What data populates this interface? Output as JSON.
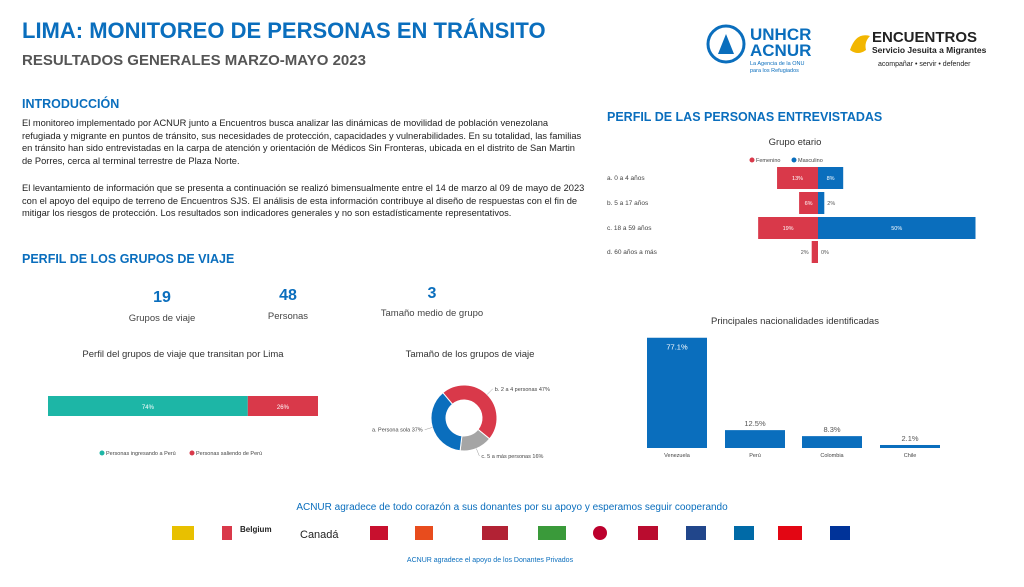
{
  "header": {
    "title": "LIMA: MONITOREO DE PERSONAS EN TRÁNSITO",
    "subtitle": "RESULTADOS GENERALES MARZO-MAYO 2023",
    "logo_unhcr": [
      "UNHCR",
      "ACNUR",
      "La Agencia de la ONU",
      "para los Refugiados"
    ],
    "logo_encuentros": [
      "ENCUENTROS",
      "Servicio Jesuita a Migrantes",
      "acompañar  •  servir  •  defender"
    ]
  },
  "intro": {
    "heading": "INTRODUCCIÓN",
    "paragraphs": [
      "El monitoreo implementado por ACNUR junto a Encuentros busca analizar las dinámicas de movilidad de población venezolana refugiada y migrante en puntos de tránsito, sus necesidades de protección, capacidades y vulnerabilidades. En su totalidad, las familias en tránsito han sido entrevistadas en la carpa de atención y orientación de Médicos Sin Fronteras, ubicada en el distrito de San Martin de Porres, cerca al terminal terrestre de Plaza Norte.",
      "El levantamiento de información que se presenta a continuación se realizó bimensualmente entre el 14 de marzo al 09 de mayo de 2023 con el apoyo del equipo de terreno de Encuentros SJS. El análisis de esta información contribuye al diseño de respuestas con el fin de mitigar los riesgos de protección. Los resultados son indicadores generales y no son estadísticamente representativos."
    ]
  },
  "travel_groups": {
    "heading": "PERFIL DE LOS GRUPOS DE VIAJE",
    "stats": [
      {
        "value": 19,
        "label": "Grupos de viaje"
      },
      {
        "value": 48,
        "label": "Personas"
      },
      {
        "value": 3,
        "label": "Tamaño medio de grupo"
      }
    ]
  },
  "interviewees": {
    "heading": "PERFIL DE LAS PERSONAS ENTREVISTADAS"
  },
  "chart_data": [
    {
      "type": "stacked_hbar",
      "title": "Perfil del grupos de viaje que transitan por Lima",
      "series": [
        {
          "name": "Personas ingresando a Perú",
          "color": "#1db6a6",
          "values": [
            74
          ],
          "value_labels": [
            "74%"
          ]
        },
        {
          "name": "Personas saliendo de Perú",
          "color": "#d9394a",
          "values": [
            26
          ],
          "value_labels": [
            "26%"
          ]
        }
      ]
    },
    {
      "type": "donut",
      "title": "Tamaño de los grupos de viaje",
      "categories": [
        "b. 2 a 4 personas",
        "c. 5 a más personas",
        "a. Persona sola"
      ],
      "values": [
        47,
        16,
        37
      ],
      "value_labels": [
        "47%",
        "16%",
        "37%"
      ],
      "colors": [
        "#d9394a",
        "#a5a5a5",
        "#0a6ebd"
      ]
    },
    {
      "type": "pyramid",
      "title": "Grupo etario",
      "categories": [
        "a. 0 a 4 años",
        "b. 5 a 17 años",
        "c. 18 a 59 años",
        "d. 60 años a más"
      ],
      "series": [
        {
          "name": "Femenino",
          "color": "#d9394a",
          "values": [
            13,
            6,
            19,
            2
          ],
          "value_labels": [
            "13%",
            "6%",
            "19%",
            "2%"
          ]
        },
        {
          "name": "Masculino",
          "color": "#0a6ebd",
          "values": [
            8,
            2,
            50,
            0
          ],
          "value_labels": [
            "8%",
            "2%",
            "50%",
            "0%"
          ]
        }
      ]
    },
    {
      "type": "bar",
      "title": "Principales nacionalidades identificadas",
      "categories": [
        "Venezuela",
        "Perú",
        "Colombia",
        "Chile"
      ],
      "values": [
        77.1,
        12.5,
        8.3,
        2.1
      ],
      "value_labels": [
        "77.1%",
        "12.5%",
        "8.3%",
        "2.1%"
      ],
      "color": "#0a6ebd"
    }
  ],
  "footer": {
    "thanks": "ACNUR agradece de todo corazón a sus donantes por su apoyo y esperamos seguir cooperando",
    "donors": [
      "Belgium",
      "Canadá"
    ],
    "private": "ACNUR agradece el apoyo de los Donantes Privados"
  }
}
